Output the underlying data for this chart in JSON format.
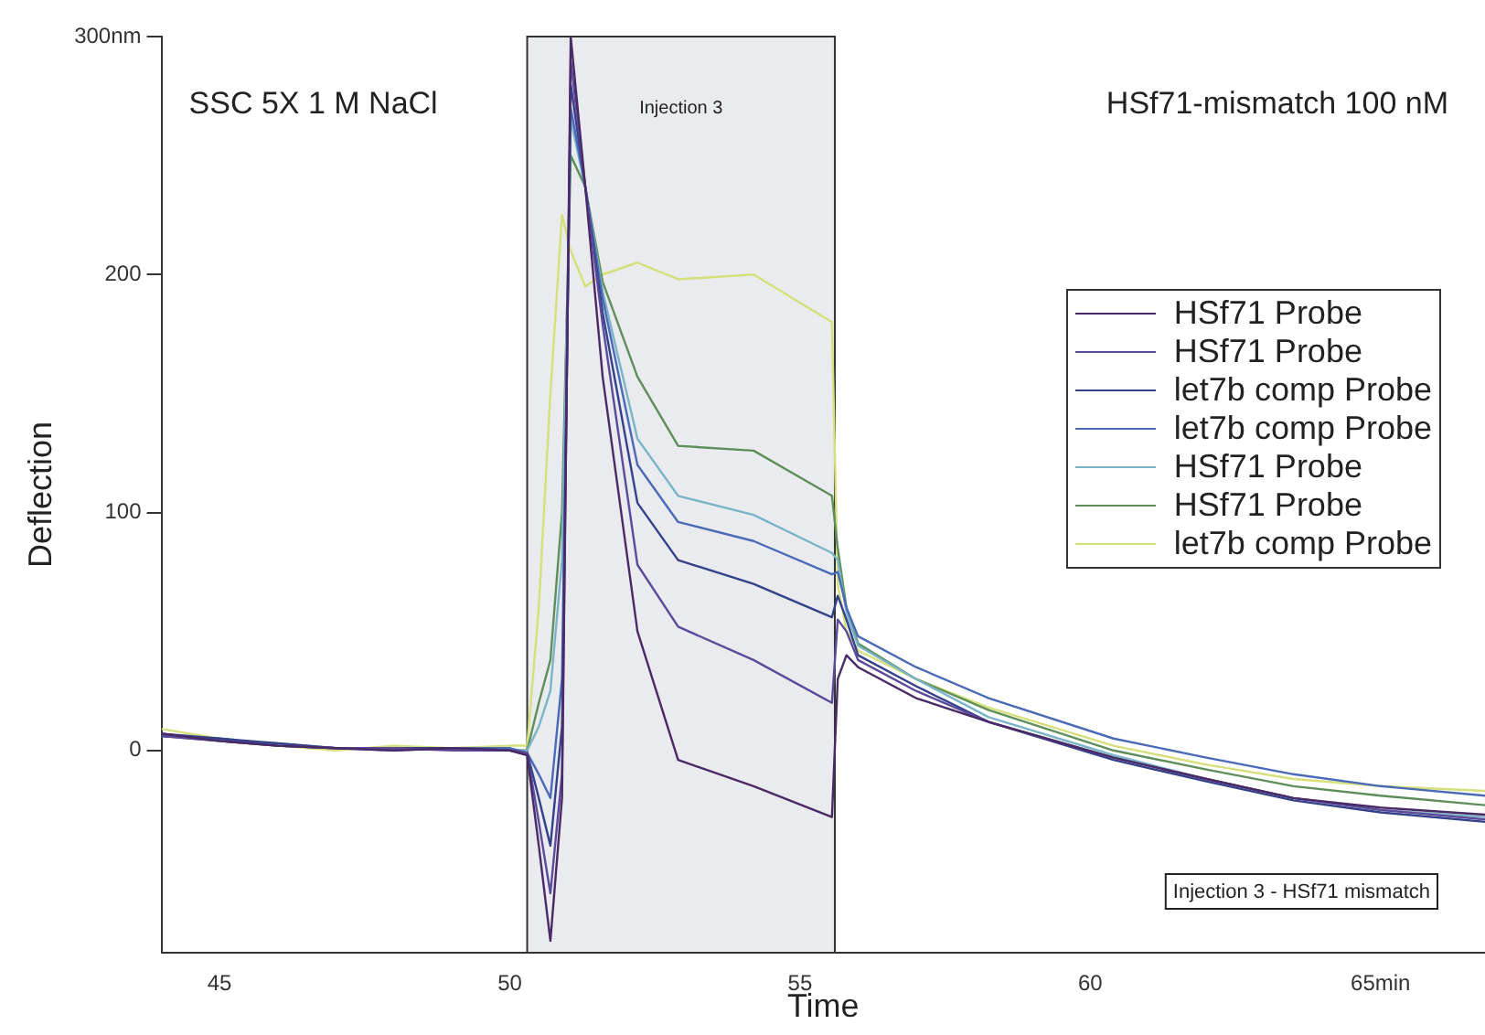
{
  "chart_data": {
    "type": "line",
    "xlabel": "Time",
    "ylabel": "Deflection",
    "x": [
      44,
      45,
      46,
      47,
      48,
      49,
      50,
      50.3,
      50.5,
      50.7,
      50.9,
      51.05,
      51.3,
      51.6,
      52.2,
      52.9,
      54.2,
      55.55,
      55.65,
      55.8,
      56,
      57,
      58.25,
      60.4,
      62,
      63.5,
      65,
      66.8
    ],
    "series": [
      {
        "name": "HSf71 Probe",
        "color": "#4a2a66",
        "values": [
          7,
          4,
          2,
          1,
          0,
          1,
          0,
          -2,
          -40,
          -80,
          -20,
          300,
          237,
          157,
          50,
          -4,
          -15,
          -28,
          30,
          40,
          35,
          22,
          12,
          -3,
          -12,
          -20,
          -24,
          -27
        ]
      },
      {
        "name": "HSf71 Probe",
        "color": "#5c4a9a",
        "values": [
          6,
          4,
          2,
          1,
          1,
          0,
          0,
          -1,
          -30,
          -60,
          -10,
          290,
          237,
          179,
          78,
          52,
          38,
          20,
          55,
          50,
          38,
          25,
          12,
          -3,
          -12,
          -20,
          -25,
          -29
        ]
      },
      {
        "name": "let7b comp Probe",
        "color": "#34408a",
        "values": [
          7,
          5,
          3,
          1,
          1,
          1,
          0,
          -1,
          -20,
          -40,
          10,
          280,
          237,
          184,
          104,
          80,
          70,
          56,
          65,
          55,
          40,
          27,
          12,
          -4,
          -13,
          -21,
          -26,
          -30
        ]
      },
      {
        "name": "let7b comp Probe",
        "color": "#4a6ab8",
        "values": [
          6,
          5,
          2,
          1,
          0,
          1,
          1,
          -1,
          -10,
          -20,
          30,
          270,
          237,
          190,
          120,
          96,
          88,
          74,
          75,
          60,
          48,
          35,
          22,
          5,
          -3,
          -10,
          -15,
          -19
        ]
      },
      {
        "name": "HSf71 Probe",
        "color": "#7ab4c8",
        "values": [
          7,
          4,
          3,
          1,
          1,
          1,
          0,
          0,
          10,
          25,
          80,
          265,
          237,
          193,
          131,
          107,
          99,
          83,
          80,
          58,
          44,
          30,
          14,
          -2,
          -12,
          -20,
          -25,
          -28
        ]
      },
      {
        "name": "HSf71 Probe",
        "color": "#5e8e5a",
        "values": [
          6,
          4,
          2,
          1,
          1,
          1,
          0,
          0,
          20,
          38,
          100,
          250,
          237,
          197,
          157,
          128,
          126,
          107,
          85,
          60,
          45,
          30,
          17,
          0,
          -8,
          -15,
          -19,
          -23
        ]
      },
      {
        "name": "let7b comp Probe",
        "color": "#d6e07a",
        "values": [
          9,
          5,
          2,
          0,
          2,
          1,
          2,
          2,
          60,
          150,
          225,
          210,
          195,
          200,
          205,
          198,
          200,
          180,
          70,
          50,
          42,
          30,
          18,
          2,
          -6,
          -12,
          -15,
          -17
        ]
      }
    ],
    "xlim": [
      44,
      66.8
    ],
    "ylim": [
      -85,
      300
    ],
    "xticks": [
      45,
      50,
      55,
      60,
      {
        "value": 65,
        "label": "65min"
      }
    ],
    "yticks": [
      0,
      100,
      200,
      {
        "value": 300,
        "label": "300nm"
      }
    ],
    "bands": [
      {
        "axis": "x",
        "from": 50.3,
        "to": 55.6,
        "label": "Injection 3",
        "color": "#e9ebee"
      }
    ],
    "annotations": [
      "SSC 5X 1 M NaCl",
      "HSf71-mismatch 100 nM",
      "Injection 3 - HSf71 mismatch"
    ],
    "legend": "right",
    "grid": false,
    "marker": "none",
    "line_style": "solid"
  }
}
